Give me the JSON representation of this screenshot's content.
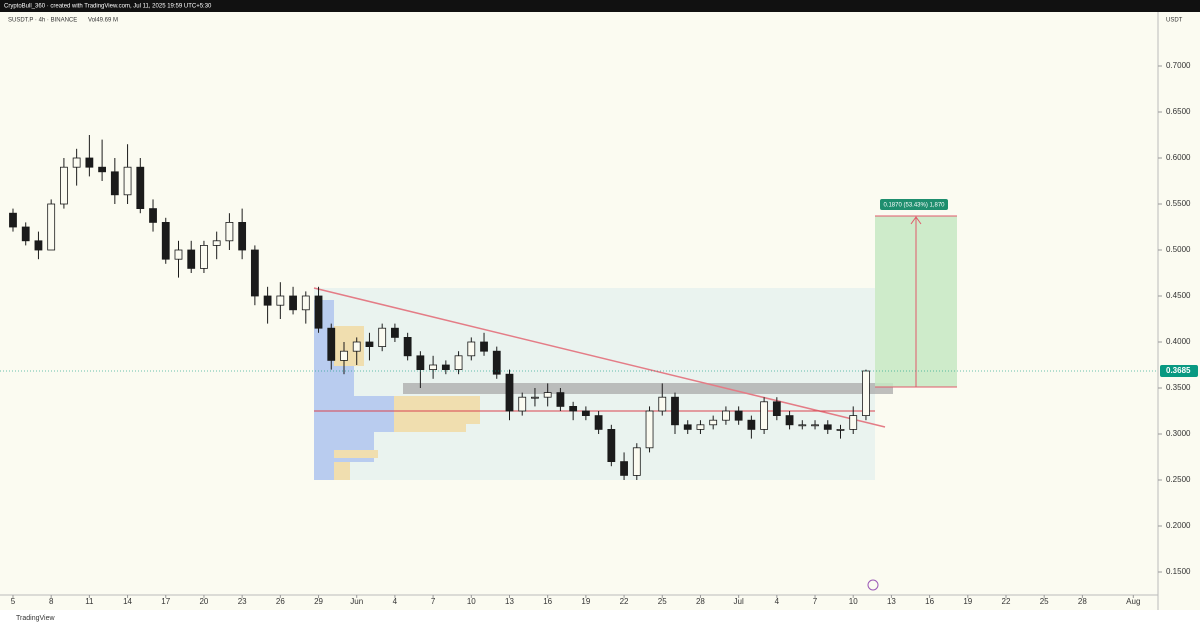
{
  "header": {
    "caption": "CryptoBull_360 · created with TradingView.com, Jul 11, 2025 19:59 UTC+5:30",
    "symbol": "SUSDT.P · 4h · BINANCE",
    "volume": "Vol49.69 M",
    "brand": "TradingView"
  },
  "chart_data": {
    "type": "candlestick",
    "y_unit": "USDT",
    "open": [
      0.54,
      0.525,
      0.51,
      0.5,
      0.55,
      0.59,
      0.6,
      0.59,
      0.585,
      0.56,
      0.59,
      0.545,
      0.53,
      0.49,
      0.5,
      0.48,
      0.505,
      0.51,
      0.53,
      0.5,
      0.45,
      0.44,
      0.45,
      0.435,
      0.45,
      0.415,
      0.38,
      0.39,
      0.4,
      0.395,
      0.415,
      0.405,
      0.385,
      0.37,
      0.375,
      0.37,
      0.385,
      0.4,
      0.39,
      0.365,
      0.325,
      0.34,
      0.34,
      0.345,
      0.33,
      0.325,
      0.32,
      0.305,
      0.27,
      0.255,
      0.285,
      0.325,
      0.34,
      0.31,
      0.305,
      0.31,
      0.315,
      0.325,
      0.315,
      0.305,
      0.335,
      0.32,
      0.31,
      0.31,
      0.31,
      0.305,
      0.305,
      0.32
    ],
    "high": [
      0.545,
      0.53,
      0.52,
      0.555,
      0.6,
      0.61,
      0.625,
      0.62,
      0.6,
      0.615,
      0.6,
      0.555,
      0.535,
      0.51,
      0.51,
      0.51,
      0.52,
      0.54,
      0.545,
      0.505,
      0.46,
      0.465,
      0.46,
      0.455,
      0.46,
      0.42,
      0.4,
      0.405,
      0.41,
      0.42,
      0.42,
      0.41,
      0.39,
      0.385,
      0.38,
      0.39,
      0.405,
      0.41,
      0.395,
      0.37,
      0.345,
      0.35,
      0.355,
      0.35,
      0.335,
      0.33,
      0.325,
      0.31,
      0.28,
      0.29,
      0.33,
      0.355,
      0.345,
      0.315,
      0.315,
      0.32,
      0.33,
      0.33,
      0.32,
      0.34,
      0.34,
      0.325,
      0.315,
      0.315,
      0.315,
      0.31,
      0.33,
      0.37
    ],
    "low": [
      0.52,
      0.505,
      0.49,
      0.5,
      0.545,
      0.57,
      0.58,
      0.575,
      0.55,
      0.55,
      0.54,
      0.52,
      0.485,
      0.47,
      0.475,
      0.475,
      0.49,
      0.5,
      0.49,
      0.44,
      0.42,
      0.425,
      0.43,
      0.42,
      0.41,
      0.37,
      0.365,
      0.375,
      0.38,
      0.39,
      0.4,
      0.38,
      0.35,
      0.36,
      0.365,
      0.365,
      0.38,
      0.385,
      0.36,
      0.315,
      0.32,
      0.33,
      0.33,
      0.325,
      0.315,
      0.315,
      0.3,
      0.265,
      0.25,
      0.25,
      0.28,
      0.32,
      0.3,
      0.3,
      0.3,
      0.305,
      0.31,
      0.31,
      0.295,
      0.3,
      0.315,
      0.305,
      0.305,
      0.305,
      0.3,
      0.295,
      0.3,
      0.315
    ],
    "close": [
      0.525,
      0.51,
      0.5,
      0.55,
      0.59,
      0.6,
      0.59,
      0.585,
      0.56,
      0.59,
      0.545,
      0.53,
      0.49,
      0.5,
      0.48,
      0.505,
      0.51,
      0.53,
      0.5,
      0.45,
      0.44,
      0.45,
      0.435,
      0.45,
      0.415,
      0.38,
      0.39,
      0.4,
      0.395,
      0.415,
      0.405,
      0.385,
      0.37,
      0.375,
      0.37,
      0.385,
      0.4,
      0.39,
      0.365,
      0.325,
      0.34,
      0.34,
      0.345,
      0.33,
      0.325,
      0.32,
      0.305,
      0.27,
      0.255,
      0.285,
      0.325,
      0.34,
      0.31,
      0.305,
      0.31,
      0.315,
      0.325,
      0.315,
      0.305,
      0.335,
      0.32,
      0.31,
      0.31,
      0.31,
      0.305,
      0.305,
      0.32,
      0.3685
    ],
    "color": "#1b1b1b",
    "last_price": 0.3685,
    "last_price_color": "#089981",
    "measure_label": "0.1870 (53.43%) 1,870",
    "xlim": [
      -1.02,
      89.94
    ],
    "ylim": [
      0.125,
      0.7587
    ],
    "xticks": [
      {
        "value": 0,
        "label": "5"
      },
      {
        "value": 3,
        "label": "8"
      },
      {
        "value": 6,
        "label": "11"
      },
      {
        "value": 9,
        "label": "14"
      },
      {
        "value": 12,
        "label": "17"
      },
      {
        "value": 15,
        "label": "20"
      },
      {
        "value": 18,
        "label": "23"
      },
      {
        "value": 21,
        "label": "26"
      },
      {
        "value": 24,
        "label": "29"
      },
      {
        "value": 27,
        "label": "Jun"
      },
      {
        "value": 30,
        "label": "4"
      },
      {
        "value": 33,
        "label": "7"
      },
      {
        "value": 36,
        "label": "10"
      },
      {
        "value": 39,
        "label": "13"
      },
      {
        "value": 42,
        "label": "16"
      },
      {
        "value": 45,
        "label": "19"
      },
      {
        "value": 48,
        "label": "22"
      },
      {
        "value": 51,
        "label": "25"
      },
      {
        "value": 54,
        "label": "28"
      },
      {
        "value": 57,
        "label": "Jul"
      },
      {
        "value": 60,
        "label": "4"
      },
      {
        "value": 63,
        "label": "7"
      },
      {
        "value": 66,
        "label": "10"
      },
      {
        "value": 69,
        "label": "13"
      },
      {
        "value": 72,
        "label": "16"
      },
      {
        "value": 75,
        "label": "19"
      },
      {
        "value": 78,
        "label": "22"
      },
      {
        "value": 81,
        "label": "25"
      },
      {
        "value": 84,
        "label": "28"
      },
      {
        "value": 88,
        "label": "Aug"
      }
    ],
    "yticks": [
      {
        "value": 0.15,
        "label": "0.1500"
      },
      {
        "value": 0.2,
        "label": "0.2000"
      },
      {
        "value": 0.25,
        "label": "0.2500"
      },
      {
        "value": 0.3,
        "label": "0.3000"
      },
      {
        "value": 0.35,
        "label": "0.3500"
      },
      {
        "value": 0.4,
        "label": "0.4000"
      },
      {
        "value": 0.45,
        "label": "0.4500"
      },
      {
        "value": 0.5,
        "label": "0.5000"
      },
      {
        "value": 0.55,
        "label": "0.5500"
      },
      {
        "value": 0.6,
        "label": "0.6000"
      },
      {
        "value": 0.65,
        "label": "0.6500"
      },
      {
        "value": 0.7,
        "label": "0.7000"
      }
    ]
  }
}
